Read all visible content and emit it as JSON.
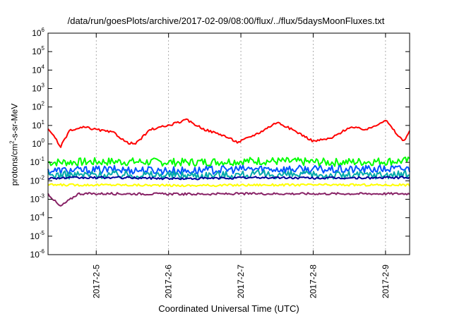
{
  "chart_data": {
    "type": "line",
    "title": "/data/run/goesPlots/archive/2017-02-09/08:00/flux/../flux/5daysMoonFluxes.txt",
    "xlabel": "Coordinated Universal Time (UTC)",
    "ylabel_parts": {
      "pre": "protons/cm",
      "sup": "2",
      "post": "-s-sr-MeV"
    },
    "yscale": "log",
    "ylim_exp": [
      -6,
      6
    ],
    "y_ticks": [
      {
        "base": "10",
        "exp": "-6"
      },
      {
        "base": "10",
        "exp": "-5"
      },
      {
        "base": "10",
        "exp": "-4"
      },
      {
        "base": "10",
        "exp": "-3"
      },
      {
        "base": "10",
        "exp": "-2"
      },
      {
        "base": "10",
        "exp": "-1"
      },
      {
        "base": "10",
        "exp": "0"
      },
      {
        "base": "10",
        "exp": "1"
      },
      {
        "base": "10",
        "exp": "2"
      },
      {
        "base": "10",
        "exp": "3"
      },
      {
        "base": "10",
        "exp": "4"
      },
      {
        "base": "10",
        "exp": "5"
      },
      {
        "base": "10",
        "exp": "6"
      }
    ],
    "xlim": [
      "2017-02-04 08:00",
      "2017-02-09 08:00"
    ],
    "x_ticks": [
      {
        "label": "2017-2-5",
        "x": "2017-02-05 00:00"
      },
      {
        "label": "2017-2-6",
        "x": "2017-02-06 00:00"
      },
      {
        "label": "2017-2-7",
        "x": "2017-02-07 00:00"
      },
      {
        "label": "2017-2-8",
        "x": "2017-02-08 00:00"
      },
      {
        "label": "2017-2-9",
        "x": "2017-02-09 00:00"
      }
    ],
    "grid": true,
    "series": [
      {
        "color": "#00ff00",
        "spiky": true,
        "points": [
          [
            "2017-02-04 08:00",
            0.1
          ],
          [
            "2017-02-05 06:00",
            0.11
          ],
          [
            "2017-02-06 06:00",
            0.1
          ],
          [
            "2017-02-07 06:00",
            0.12
          ],
          [
            "2017-02-08 06:00",
            0.1
          ],
          [
            "2017-02-09 08:00",
            0.12
          ]
        ]
      },
      {
        "color": "#0055ff",
        "spiky": true,
        "points": [
          [
            "2017-02-04 08:00",
            0.035
          ],
          [
            "2017-02-05 06:00",
            0.04
          ],
          [
            "2017-02-06 06:00",
            0.035
          ],
          [
            "2017-02-07 06:00",
            0.045
          ],
          [
            "2017-02-08 06:00",
            0.04
          ],
          [
            "2017-02-09 08:00",
            0.045
          ]
        ]
      },
      {
        "color": "#00aaaa",
        "spiky": true,
        "points": [
          [
            "2017-02-04 08:00",
            0.02
          ],
          [
            "2017-02-05 06:00",
            0.022
          ],
          [
            "2017-02-06 06:00",
            0.02
          ],
          [
            "2017-02-07 06:00",
            0.022
          ],
          [
            "2017-02-08 06:00",
            0.02
          ],
          [
            "2017-02-09 08:00",
            0.022
          ]
        ]
      },
      {
        "color": "#000099",
        "spiky": false,
        "points": [
          [
            "2017-02-04 08:00",
            0.014
          ],
          [
            "2017-02-05 06:00",
            0.015
          ],
          [
            "2017-02-06 06:00",
            0.013
          ],
          [
            "2017-02-07 06:00",
            0.015
          ],
          [
            "2017-02-08 06:00",
            0.014
          ],
          [
            "2017-02-09 08:00",
            0.015
          ]
        ]
      },
      {
        "color": "#ffff00",
        "spiky": false,
        "points": [
          [
            "2017-02-04 08:00",
            0.006
          ],
          [
            "2017-02-05 06:00",
            0.006
          ],
          [
            "2017-02-06 06:00",
            0.0055
          ],
          [
            "2017-02-07 06:00",
            0.006
          ],
          [
            "2017-02-08 06:00",
            0.006
          ],
          [
            "2017-02-09 08:00",
            0.006
          ]
        ]
      },
      {
        "color": "#882266",
        "spiky": false,
        "points": [
          [
            "2017-02-04 08:00",
            0.002
          ],
          [
            "2017-02-04 12:00",
            0.0004
          ],
          [
            "2017-02-04 18:00",
            0.002
          ],
          [
            "2017-02-05 06:00",
            0.002
          ],
          [
            "2017-02-06 06:00",
            0.0019
          ],
          [
            "2017-02-07 06:00",
            0.002
          ],
          [
            "2017-02-08 06:00",
            0.002
          ],
          [
            "2017-02-09 08:00",
            0.002
          ]
        ]
      },
      {
        "color": "#ff0000",
        "spiky": false,
        "points": [
          [
            "2017-02-04 08:00",
            6
          ],
          [
            "2017-02-04 10:00",
            3
          ],
          [
            "2017-02-04 12:00",
            0.6
          ],
          [
            "2017-02-04 15:00",
            5
          ],
          [
            "2017-02-04 20:00",
            8
          ],
          [
            "2017-02-05 00:00",
            6
          ],
          [
            "2017-02-05 06:00",
            4
          ],
          [
            "2017-02-05 10:00",
            1.2
          ],
          [
            "2017-02-05 13:00",
            1
          ],
          [
            "2017-02-05 18:00",
            6
          ],
          [
            "2017-02-06 00:00",
            10
          ],
          [
            "2017-02-06 06:00",
            20
          ],
          [
            "2017-02-06 12:00",
            6
          ],
          [
            "2017-02-06 18:00",
            3
          ],
          [
            "2017-02-06 23:00",
            1.2
          ],
          [
            "2017-02-07 06:00",
            4
          ],
          [
            "2017-02-07 12:00",
            15
          ],
          [
            "2017-02-07 18:00",
            5
          ],
          [
            "2017-02-08 00:00",
            1.4
          ],
          [
            "2017-02-08 06:00",
            2
          ],
          [
            "2017-02-08 12:00",
            8
          ],
          [
            "2017-02-08 18:00",
            6
          ],
          [
            "2017-02-09 00:00",
            20
          ],
          [
            "2017-02-09 04:00",
            3
          ],
          [
            "2017-02-09 06:00",
            1.4
          ],
          [
            "2017-02-09 08:00",
            5
          ]
        ]
      }
    ]
  }
}
